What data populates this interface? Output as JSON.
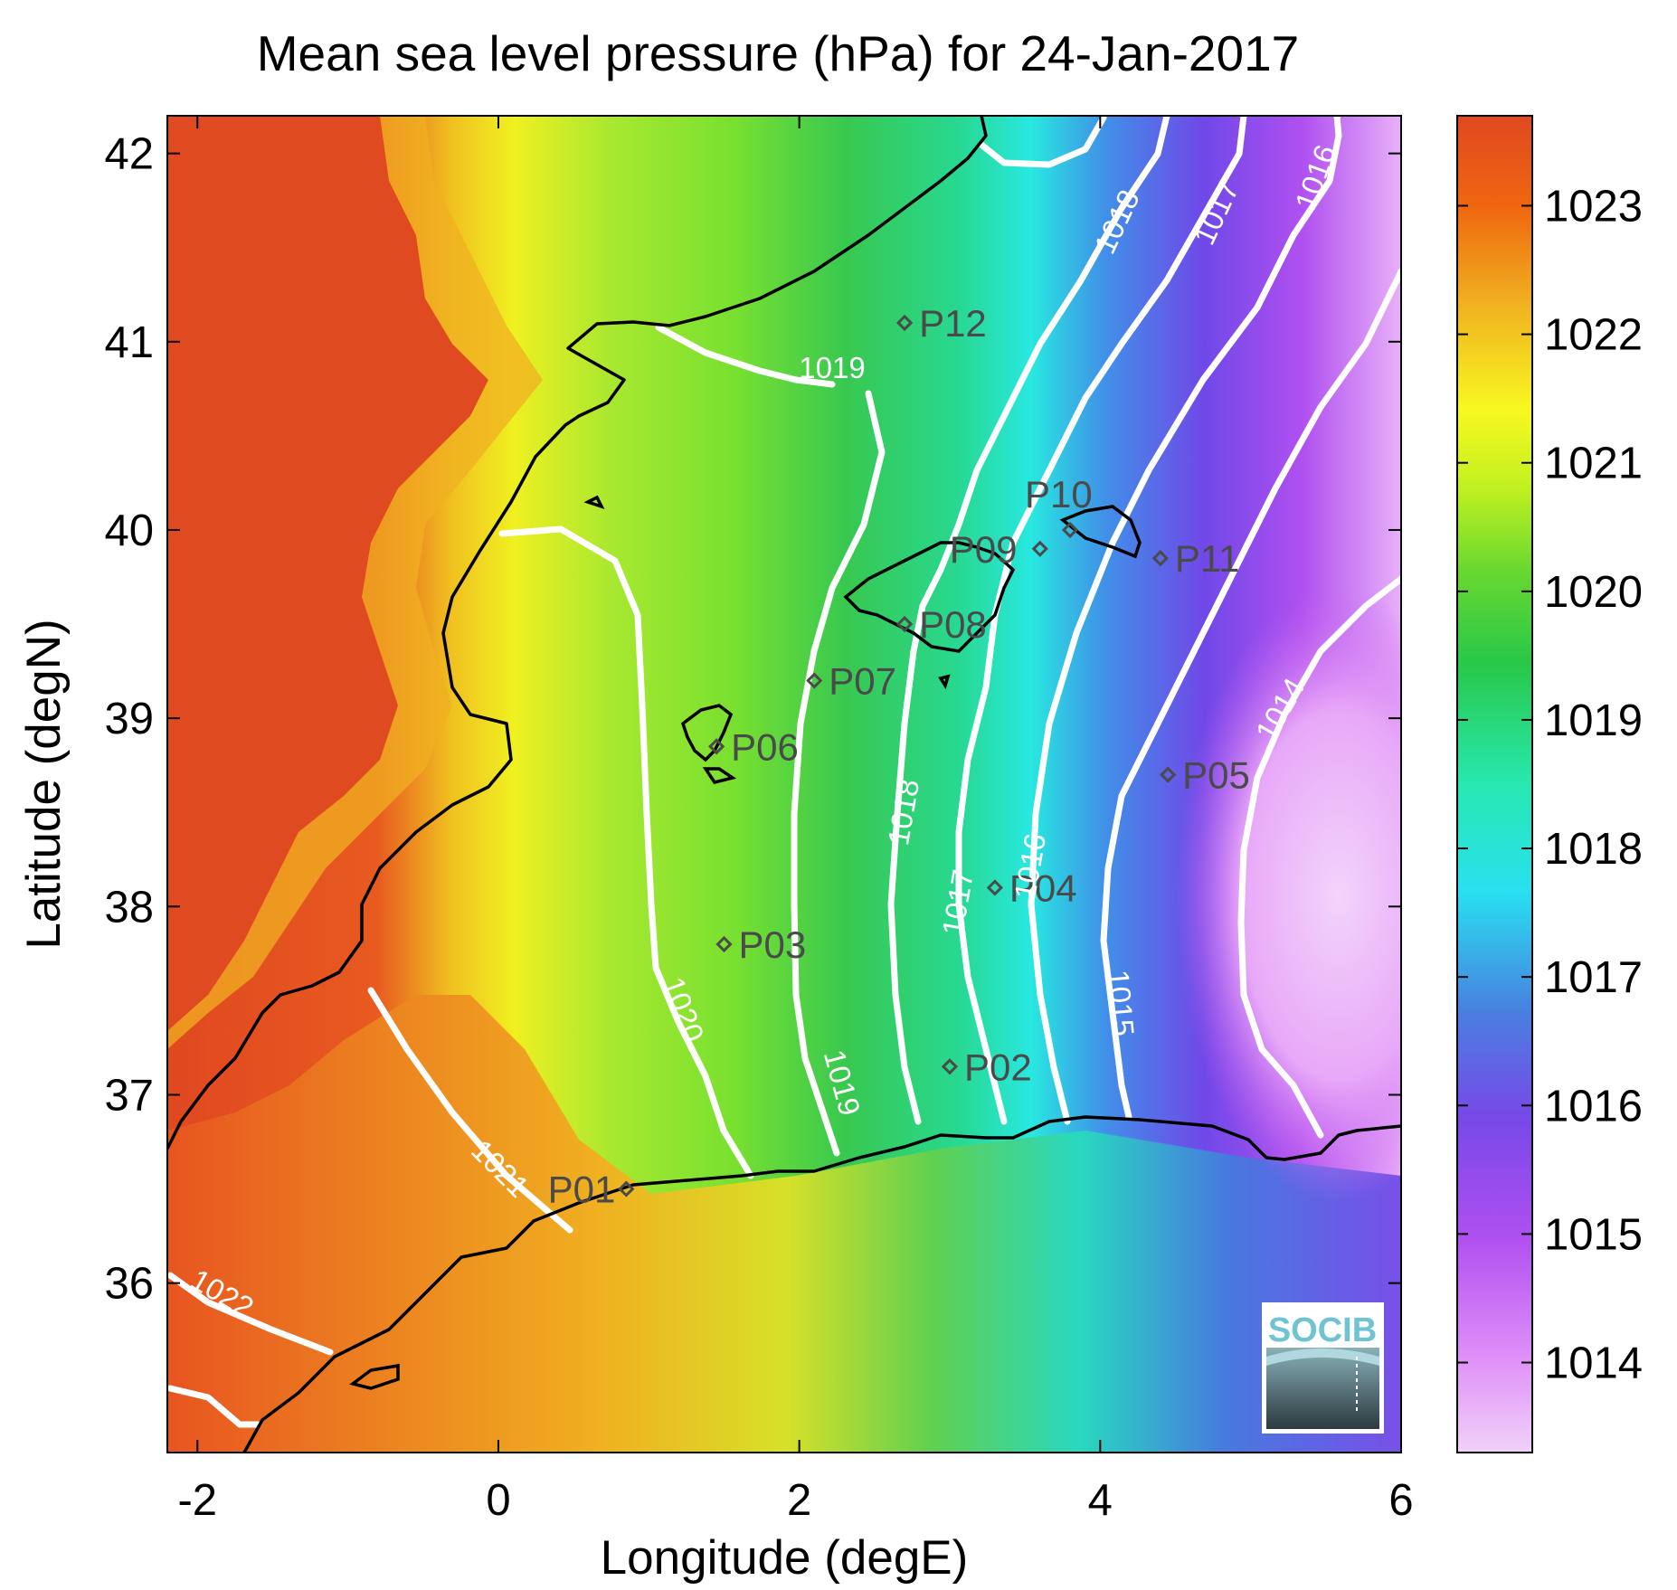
{
  "title": "Mean sea level pressure (hPa) for 24-Jan-2017",
  "xlabel": "Longitude (degE)",
  "ylabel": "Latitude (degN)",
  "chart_data": {
    "type": "heatmap",
    "variable": "Mean sea level pressure (hPa)",
    "date": "24-Jan-2017",
    "xlim": [
      -2.2,
      6.0
    ],
    "ylim": [
      35.1,
      42.2
    ],
    "x_ticks": [
      -2,
      0,
      2,
      4,
      6
    ],
    "y_ticks": [
      36,
      37,
      38,
      39,
      40,
      41,
      42
    ],
    "colorbar": {
      "ticks": [
        1014,
        1015,
        1016,
        1017,
        1018,
        1019,
        1020,
        1021,
        1022,
        1023
      ],
      "range": [
        1013.3,
        1023.7
      ],
      "colors": [
        "#f0d2f8",
        "#d060f0",
        "#8050e8",
        "#5878e0",
        "#28d8f0",
        "#28f0c0",
        "#28c858",
        "#90e030",
        "#f0f020",
        "#f0b020",
        "#f06010",
        "#e04820"
      ]
    },
    "contours": [
      {
        "level": 1022,
        "label": "1022"
      },
      {
        "level": 1021,
        "label": "1021"
      },
      {
        "level": 1020,
        "label": "1020"
      },
      {
        "level": 1019,
        "label": "1019"
      },
      {
        "level": 1018,
        "label": "1018"
      },
      {
        "level": 1017,
        "label": "1017"
      },
      {
        "level": 1016,
        "label": "1016"
      },
      {
        "level": 1015,
        "label": "1015"
      },
      {
        "level": 1014,
        "label": "1014"
      }
    ],
    "stations": [
      {
        "name": "P01",
        "lon": 0.85,
        "lat": 36.5
      },
      {
        "name": "P02",
        "lon": 3.0,
        "lat": 37.15
      },
      {
        "name": "P03",
        "lon": 1.5,
        "lat": 37.8
      },
      {
        "name": "P04",
        "lon": 3.3,
        "lat": 38.1
      },
      {
        "name": "P05",
        "lon": 4.45,
        "lat": 38.7
      },
      {
        "name": "P06",
        "lon": 1.45,
        "lat": 38.85
      },
      {
        "name": "P07",
        "lon": 2.1,
        "lat": 39.2
      },
      {
        "name": "P08",
        "lon": 2.7,
        "lat": 39.5
      },
      {
        "name": "P09",
        "lon": 3.6,
        "lat": 39.9
      },
      {
        "name": "P10",
        "lon": 3.8,
        "lat": 40.0
      },
      {
        "name": "P11",
        "lon": 4.4,
        "lat": 39.85
      },
      {
        "name": "P12",
        "lon": 2.7,
        "lat": 41.1
      }
    ]
  },
  "logo": {
    "text": "SOCIB"
  }
}
